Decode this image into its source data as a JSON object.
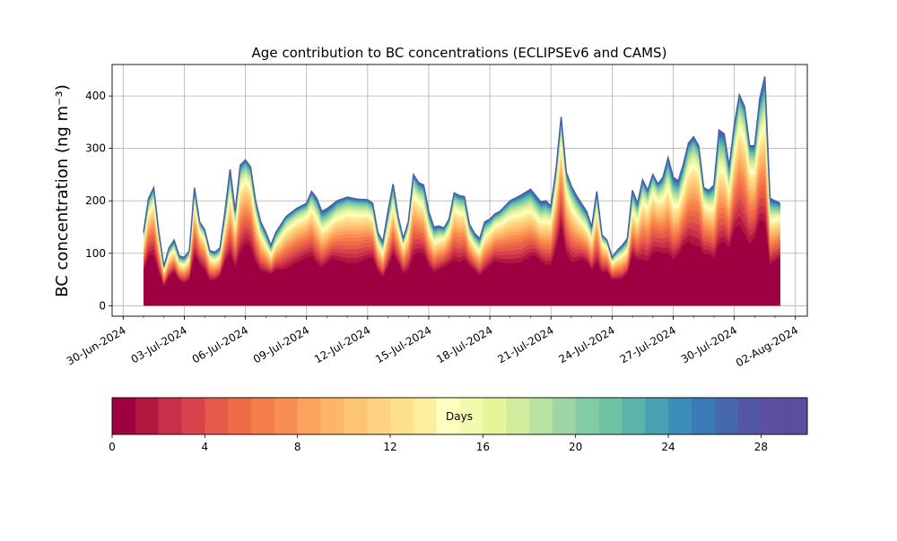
{
  "chart_data": {
    "type": "area",
    "title": "Age contribution to BC concentrations (ECLIPSEv6 and CAMS)",
    "xlabel": "",
    "ylabel": "BC concentration (ng m⁻³)",
    "ylim": [
      -20,
      460
    ],
    "xlim": [
      "2024-06-29T11:00",
      "2024-08-02T14:00"
    ],
    "grid": true,
    "x_tick_labels": [
      "30-Jun-2024",
      "03-Jul-2024",
      "06-Jul-2024",
      "09-Jul-2024",
      "12-Jul-2024",
      "15-Jul-2024",
      "18-Jul-2024",
      "21-Jul-2024",
      "24-Jul-2024",
      "27-Jul-2024",
      "30-Jul-2024",
      "02-Aug-2024"
    ],
    "x_tick_dates": [
      "2024-06-30",
      "2024-07-03",
      "2024-07-06",
      "2024-07-09",
      "2024-07-12",
      "2024-07-15",
      "2024-07-18",
      "2024-07-21",
      "2024-07-24",
      "2024-07-27",
      "2024-07-30",
      "2024-08-02"
    ],
    "y_ticks": [
      0,
      100,
      200,
      300,
      400
    ],
    "stack_layers": 30,
    "stack_colormap": "Spectral (day 0 dark red → day 30 violet-blue)",
    "total": {
      "x": [
        "2024-07-01T00:00",
        "2024-07-01T06:00",
        "2024-07-01T12:00",
        "2024-07-01T18:00",
        "2024-07-02T00:00",
        "2024-07-02T06:00",
        "2024-07-02T12:00",
        "2024-07-02T18:00",
        "2024-07-03T00:00",
        "2024-07-03T06:00",
        "2024-07-03T12:00",
        "2024-07-03T18:00",
        "2024-07-04T00:00",
        "2024-07-04T06:00",
        "2024-07-04T12:00",
        "2024-07-04T18:00",
        "2024-07-05T00:00",
        "2024-07-05T06:00",
        "2024-07-05T12:00",
        "2024-07-05T18:00",
        "2024-07-06T00:00",
        "2024-07-06T06:00",
        "2024-07-06T12:00",
        "2024-07-06T18:00",
        "2024-07-07T00:00",
        "2024-07-07T06:00",
        "2024-07-07T12:00",
        "2024-07-07T18:00",
        "2024-07-08T00:00",
        "2024-07-08T12:00",
        "2024-07-09T00:00",
        "2024-07-09T06:00",
        "2024-07-09T12:00",
        "2024-07-09T18:00",
        "2024-07-10T00:00",
        "2024-07-10T06:00",
        "2024-07-10T12:00",
        "2024-07-11T00:00",
        "2024-07-11T12:00",
        "2024-07-12T00:00",
        "2024-07-12T06:00",
        "2024-07-12T12:00",
        "2024-07-12T18:00",
        "2024-07-13T00:00",
        "2024-07-13T06:00",
        "2024-07-13T12:00",
        "2024-07-13T18:00",
        "2024-07-14T00:00",
        "2024-07-14T06:00",
        "2024-07-14T12:00",
        "2024-07-14T18:00",
        "2024-07-15T00:00",
        "2024-07-15T06:00",
        "2024-07-15T12:00",
        "2024-07-15T18:00",
        "2024-07-16T00:00",
        "2024-07-16T06:00",
        "2024-07-16T12:00",
        "2024-07-16T18:00",
        "2024-07-17T00:00",
        "2024-07-17T06:00",
        "2024-07-17T12:00",
        "2024-07-17T18:00",
        "2024-07-18T00:00",
        "2024-07-18T06:00",
        "2024-07-18T12:00",
        "2024-07-19T00:00",
        "2024-07-19T12:00",
        "2024-07-20T00:00",
        "2024-07-20T06:00",
        "2024-07-20T12:00",
        "2024-07-20T18:00",
        "2024-07-21T00:00",
        "2024-07-21T06:00",
        "2024-07-21T12:00",
        "2024-07-21T18:00",
        "2024-07-22T00:00",
        "2024-07-22T06:00",
        "2024-07-22T12:00",
        "2024-07-22T18:00",
        "2024-07-23T00:00",
        "2024-07-23T06:00",
        "2024-07-23T12:00",
        "2024-07-23T18:00",
        "2024-07-24T00:00",
        "2024-07-24T06:00",
        "2024-07-24T12:00",
        "2024-07-24T18:00",
        "2024-07-25T00:00",
        "2024-07-25T06:00",
        "2024-07-25T12:00",
        "2024-07-25T18:00",
        "2024-07-26T00:00",
        "2024-07-26T06:00",
        "2024-07-26T12:00",
        "2024-07-26T18:00",
        "2024-07-27T00:00",
        "2024-07-27T06:00",
        "2024-07-27T12:00",
        "2024-07-27T18:00",
        "2024-07-28T00:00",
        "2024-07-28T06:00",
        "2024-07-28T12:00",
        "2024-07-28T18:00",
        "2024-07-29T00:00",
        "2024-07-29T06:00",
        "2024-07-29T12:00",
        "2024-07-29T18:00",
        "2024-07-30T00:00",
        "2024-07-30T06:00",
        "2024-07-30T12:00",
        "2024-07-30T18:00",
        "2024-07-31T00:00",
        "2024-07-31T06:00",
        "2024-07-31T12:00",
        "2024-07-31T18:00",
        "2024-08-01T00:00",
        "2024-08-01T06:00"
      ],
      "y": [
        140,
        205,
        225,
        140,
        75,
        110,
        125,
        95,
        92,
        105,
        225,
        160,
        145,
        105,
        102,
        110,
        180,
        260,
        180,
        268,
        278,
        265,
        200,
        160,
        140,
        115,
        140,
        155,
        170,
        185,
        195,
        218,
        205,
        180,
        185,
        192,
        200,
        207,
        203,
        202,
        195,
        140,
        122,
        180,
        232,
        170,
        128,
        160,
        250,
        235,
        230,
        180,
        150,
        152,
        148,
        165,
        215,
        210,
        208,
        155,
        138,
        128,
        160,
        165,
        175,
        180,
        200,
        210,
        222,
        210,
        198,
        200,
        190,
        260,
        360,
        255,
        228,
        210,
        195,
        180,
        150,
        218,
        135,
        125,
        92,
        105,
        115,
        128,
        220,
        195,
        240,
        220,
        250,
        232,
        245,
        282,
        245,
        238,
        270,
        310,
        322,
        305,
        225,
        220,
        230,
        335,
        328,
        265,
        345,
        402,
        380,
        305,
        305,
        395,
        437,
        205,
        200,
        195
      ]
    },
    "colorbar": {
      "label": "Days",
      "ticks": [
        0,
        4,
        8,
        12,
        16,
        20,
        24,
        28
      ],
      "min": 0,
      "max": 30,
      "colors": [
        "#9e0142",
        "#b2173f",
        "#c72f4b",
        "#d9444c",
        "#e55a4a",
        "#ed6b45",
        "#f47d4b",
        "#f98e52",
        "#fca15e",
        "#fdb567",
        "#fdc473",
        "#fed282",
        "#fee08b",
        "#feed9f",
        "#ffffbf",
        "#f2faae",
        "#e6f598",
        "#d0ec9c",
        "#b8e2a1",
        "#9dd5a4",
        "#81cba5",
        "#70c2a5",
        "#5bb3a9",
        "#48a0b2",
        "#3c8eb9",
        "#3b7bb7",
        "#4568ae",
        "#5356a5",
        "#5e4fa2",
        "#5a4f9e"
      ]
    }
  }
}
